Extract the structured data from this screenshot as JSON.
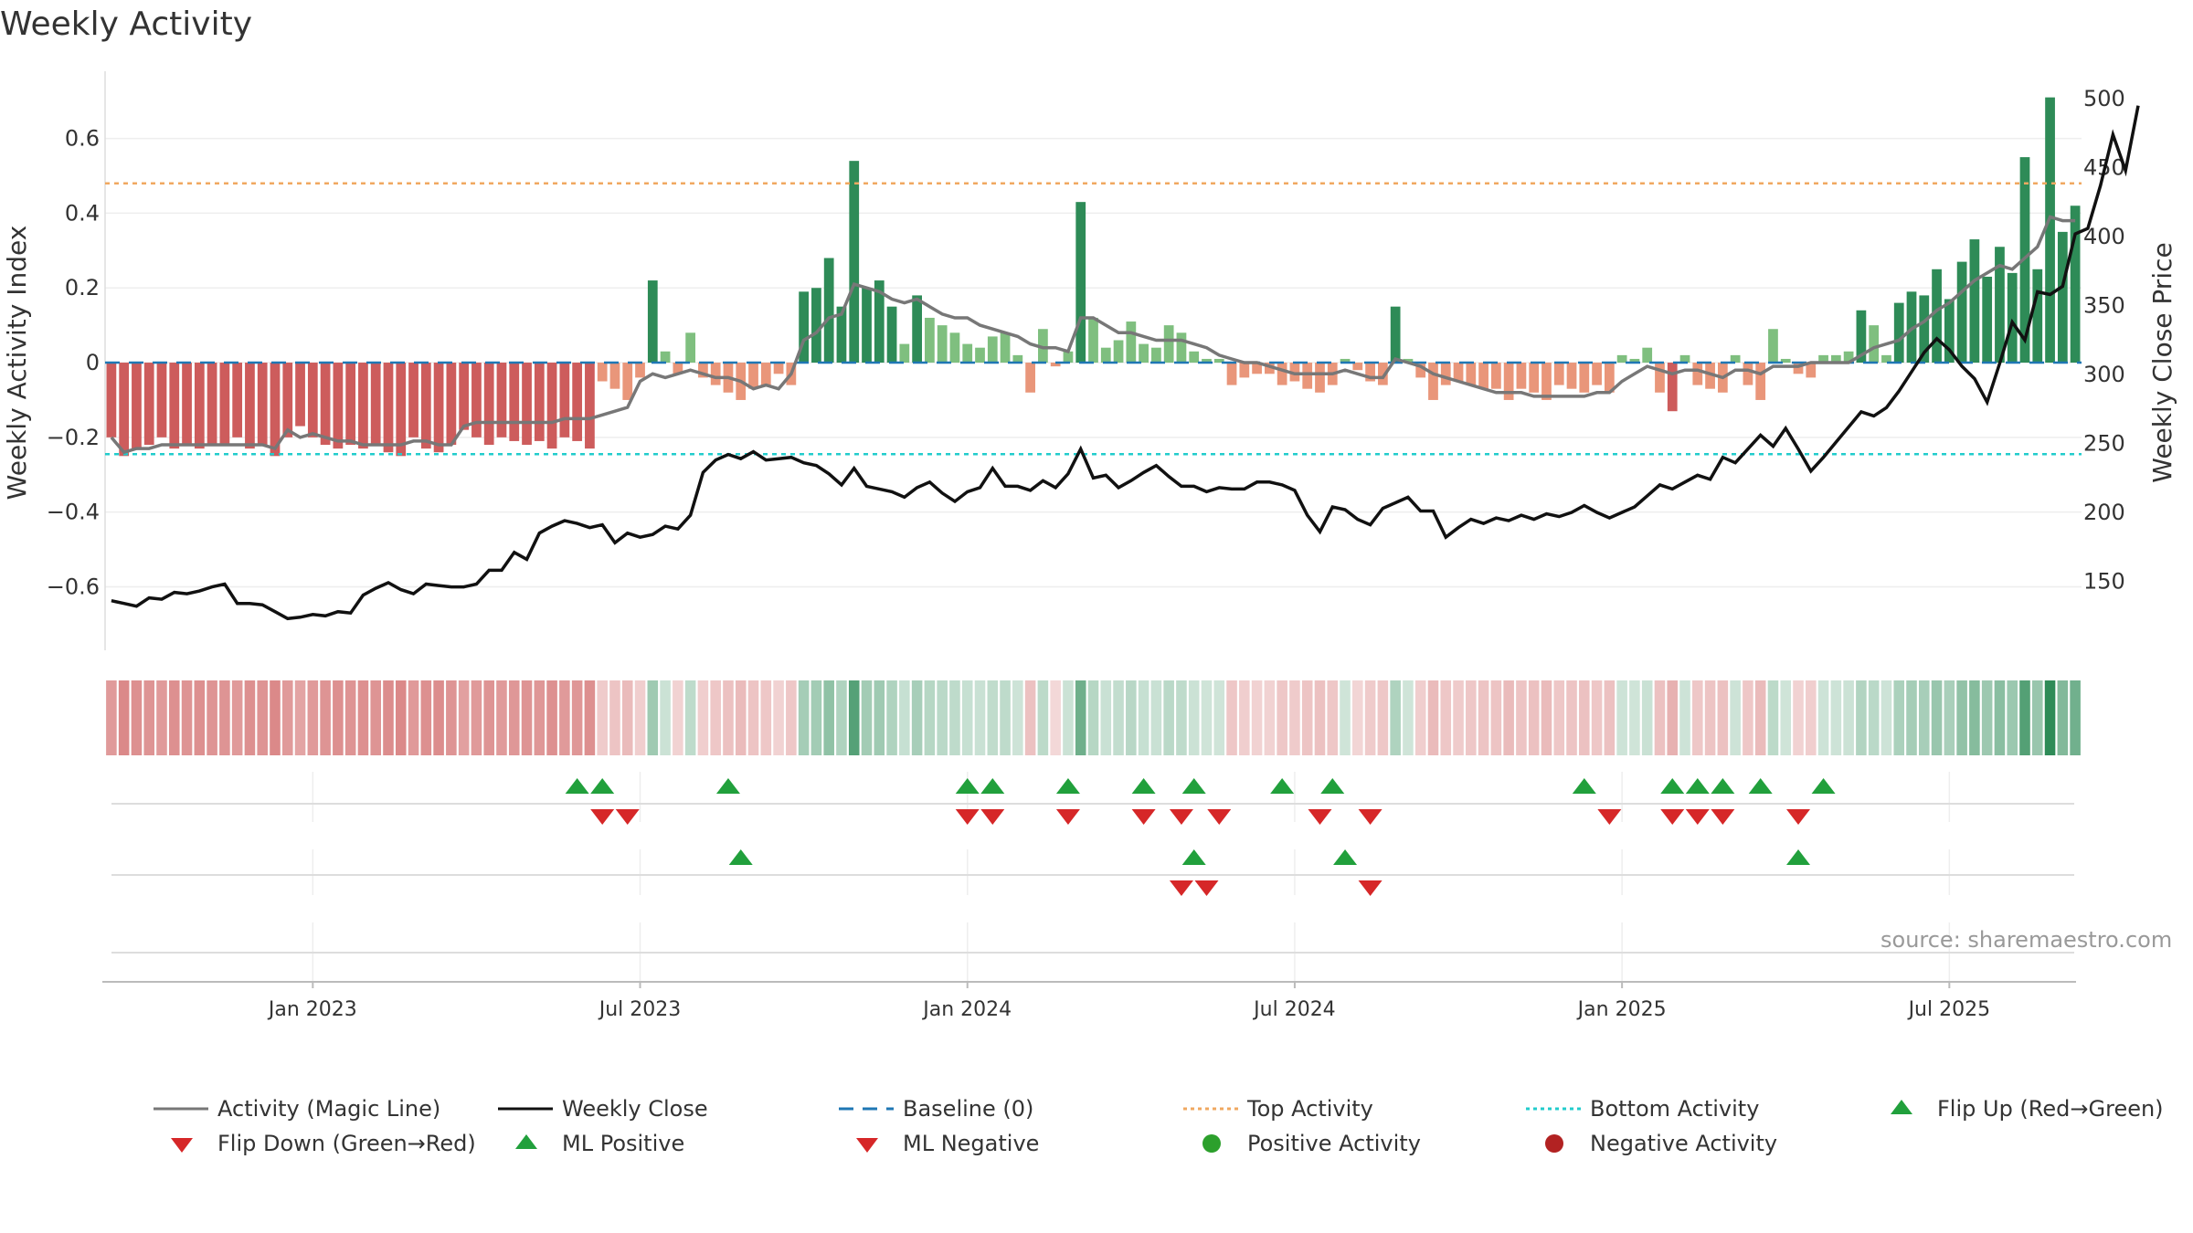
{
  "chart_data": {
    "type": "bar",
    "title": "Weekly Activity",
    "ylabel": "Weekly Activity Index",
    "y2label": "Weekly Close Price",
    "ylim": [
      -0.77,
      0.78
    ],
    "y2lim": [
      100,
      520
    ],
    "yticks": [
      -0.6,
      -0.4,
      -0.2,
      0,
      0.2,
      0.4,
      0.6
    ],
    "ytick_labels": [
      "−0.6",
      "−0.4",
      "−0.2",
      "0",
      "0.2",
      "0.4",
      "0.6"
    ],
    "y2ticks": [
      150,
      200,
      250,
      300,
      350,
      400,
      450,
      500
    ],
    "y2tick_labels": [
      "150",
      "200",
      "250",
      "300",
      "350",
      "400",
      "450",
      "500"
    ],
    "xticks": [
      {
        "week": 16,
        "label": "Jan 2023"
      },
      {
        "week": 42,
        "label": "Jul 2023"
      },
      {
        "week": 68,
        "label": "Jan 2024"
      },
      {
        "week": 94,
        "label": "Jul 2024"
      },
      {
        "week": 120,
        "label": "Jan 2025"
      },
      {
        "week": 146,
        "label": "Jul 2025"
      }
    ],
    "top_activity": 0.48,
    "bottom_activity": -0.245,
    "activity": [
      -0.2,
      -0.25,
      -0.23,
      -0.22,
      -0.2,
      -0.23,
      -0.22,
      -0.23,
      -0.22,
      -0.22,
      -0.2,
      -0.23,
      -0.22,
      -0.25,
      -0.2,
      -0.17,
      -0.2,
      -0.22,
      -0.23,
      -0.22,
      -0.23,
      -0.22,
      -0.24,
      -0.25,
      -0.2,
      -0.23,
      -0.24,
      -0.22,
      -0.18,
      -0.2,
      -0.22,
      -0.2,
      -0.21,
      -0.22,
      -0.21,
      -0.23,
      -0.2,
      -0.21,
      -0.23,
      -0.05,
      -0.07,
      -0.1,
      -0.04,
      0.22,
      0.03,
      -0.03,
      0.08,
      -0.04,
      -0.06,
      -0.08,
      -0.1,
      -0.07,
      -0.06,
      -0.03,
      -0.06,
      0.19,
      0.2,
      0.28,
      0.15,
      0.54,
      0.2,
      0.22,
      0.15,
      0.05,
      0.18,
      0.12,
      0.1,
      0.08,
      0.05,
      0.04,
      0.07,
      0.08,
      0.02,
      -0.08,
      0.09,
      -0.01,
      0.03,
      0.43,
      0.12,
      0.04,
      0.06,
      0.11,
      0.05,
      0.04,
      0.1,
      0.08,
      0.03,
      0.01,
      0.01,
      -0.06,
      -0.04,
      -0.03,
      -0.03,
      -0.06,
      -0.05,
      -0.07,
      -0.08,
      -0.06,
      0.01,
      -0.02,
      -0.05,
      -0.06,
      0.15,
      0.01,
      -0.04,
      -0.1,
      -0.06,
      -0.05,
      -0.06,
      -0.07,
      -0.07,
      -0.1,
      -0.07,
      -0.08,
      -0.1,
      -0.06,
      -0.07,
      -0.08,
      -0.06,
      -0.08,
      0.02,
      0.01,
      0.04,
      -0.08,
      -0.13,
      0.02,
      -0.06,
      -0.07,
      -0.08,
      0.02,
      -0.06,
      -0.1,
      0.09,
      0.01,
      -0.03,
      -0.04,
      0.02,
      0.02,
      0.03,
      0.14,
      0.1,
      0.02,
      0.16,
      0.19,
      0.18,
      0.25,
      0.17,
      0.27,
      0.33,
      0.23,
      0.31,
      0.24,
      0.55,
      0.25,
      0.71,
      0.35,
      0.42
    ],
    "magic_line": [
      -0.2,
      -0.24,
      -0.23,
      -0.23,
      -0.22,
      -0.22,
      -0.22,
      -0.22,
      -0.22,
      -0.22,
      -0.22,
      -0.22,
      -0.22,
      -0.23,
      -0.18,
      -0.2,
      -0.19,
      -0.2,
      -0.21,
      -0.21,
      -0.22,
      -0.22,
      -0.22,
      -0.22,
      -0.21,
      -0.21,
      -0.22,
      -0.22,
      -0.17,
      -0.16,
      -0.16,
      -0.16,
      -0.16,
      -0.16,
      -0.16,
      -0.16,
      -0.15,
      -0.15,
      -0.15,
      -0.14,
      -0.13,
      -0.12,
      -0.05,
      -0.03,
      -0.04,
      -0.03,
      -0.02,
      -0.03,
      -0.04,
      -0.04,
      -0.05,
      -0.07,
      -0.06,
      -0.07,
      -0.03,
      0.06,
      0.08,
      0.12,
      0.13,
      0.21,
      0.2,
      0.19,
      0.17,
      0.16,
      0.17,
      0.15,
      0.13,
      0.12,
      0.12,
      0.1,
      0.09,
      0.08,
      0.07,
      0.05,
      0.04,
      0.04,
      0.03,
      0.12,
      0.12,
      0.1,
      0.08,
      0.08,
      0.07,
      0.06,
      0.06,
      0.06,
      0.05,
      0.04,
      0.02,
      0.01,
      0.0,
      0.0,
      -0.01,
      -0.02,
      -0.03,
      -0.03,
      -0.03,
      -0.03,
      -0.02,
      -0.03,
      -0.04,
      -0.04,
      0.01,
      0.0,
      -0.01,
      -0.03,
      -0.04,
      -0.05,
      -0.06,
      -0.07,
      -0.08,
      -0.08,
      -0.08,
      -0.09,
      -0.09,
      -0.09,
      -0.09,
      -0.09,
      -0.08,
      -0.08,
      -0.05,
      -0.03,
      -0.01,
      -0.02,
      -0.03,
      -0.02,
      -0.02,
      -0.03,
      -0.04,
      -0.02,
      -0.02,
      -0.03,
      -0.01,
      -0.01,
      -0.01,
      0.0,
      0.0,
      0.0,
      0.0,
      0.02,
      0.04,
      0.05,
      0.06,
      0.09,
      0.11,
      0.14,
      0.16,
      0.19,
      0.22,
      0.24,
      0.26,
      0.25,
      0.28,
      0.31,
      0.39,
      0.38,
      0.38
    ],
    "weekly_close": [
      136,
      134,
      132,
      138,
      137,
      142,
      141,
      143,
      146,
      148,
      134,
      134,
      133,
      128,
      123,
      124,
      126,
      125,
      128,
      127,
      140,
      145,
      149,
      144,
      141,
      148,
      147,
      146,
      146,
      148,
      158,
      158,
      171,
      166,
      185,
      190,
      194,
      192,
      189,
      191,
      178,
      185,
      182,
      184,
      190,
      188,
      198,
      229,
      238,
      242,
      239,
      244,
      238,
      239,
      240,
      236,
      234,
      228,
      220,
      232,
      219,
      217,
      215,
      211,
      218,
      222,
      214,
      208,
      215,
      218,
      232,
      219,
      219,
      216,
      223,
      218,
      228,
      246,
      225,
      227,
      218,
      223,
      229,
      234,
      226,
      219,
      219,
      215,
      218,
      217,
      217,
      222,
      222,
      220,
      216,
      198,
      186,
      204,
      202,
      195,
      191,
      203,
      207,
      211,
      201,
      201,
      182,
      189,
      195,
      192,
      196,
      194,
      198,
      195,
      199,
      197,
      200,
      205,
      200,
      196,
      200,
      204,
      212,
      220,
      217,
      222,
      227,
      224,
      240,
      236,
      246,
      256,
      248,
      261,
      246,
      230,
      240,
      251,
      262,
      273,
      270,
      276,
      288,
      302,
      316,
      326,
      318,
      306,
      297,
      280,
      308,
      338,
      325,
      360,
      358,
      364,
      402,
      406,
      437,
      474,
      448,
      495
    ],
    "flip_up_weeks": [
      37,
      39,
      49,
      68,
      70,
      76,
      82,
      86,
      93,
      97,
      117,
      124,
      126,
      128,
      131,
      136
    ],
    "flip_down_weeks": [
      39,
      41,
      68,
      70,
      76,
      82,
      85,
      88,
      96,
      100,
      119,
      124,
      126,
      128,
      134
    ],
    "ml_positive_weeks": [
      50,
      86,
      98,
      134
    ],
    "ml_negative_weeks": [
      85,
      87,
      100
    ],
    "legend": [
      "Activity (Magic Line)",
      "Weekly Close",
      "Baseline (0)",
      "Top Activity",
      "Bottom Activity",
      "Flip Up (Red→Green)",
      "Flip Down (Green→Red)",
      "ML Positive",
      "ML Negative",
      "Positive Activity",
      "Negative Activity"
    ],
    "source": "source: sharemaestro.com",
    "colors": {
      "strong_green": "#2e8b57",
      "light_green": "#7fbf7f",
      "strong_red": "#cd5c5c",
      "light_red": "#e9967a",
      "magic_line": "#777777",
      "close": "#111111",
      "baseline": "#1f77b4",
      "top": "#f0a860",
      "bottom": "#22cccc",
      "up": "#21a03c",
      "down": "#d62728",
      "pos_dot": "#2ca02c",
      "neg_dot": "#b22222"
    }
  }
}
